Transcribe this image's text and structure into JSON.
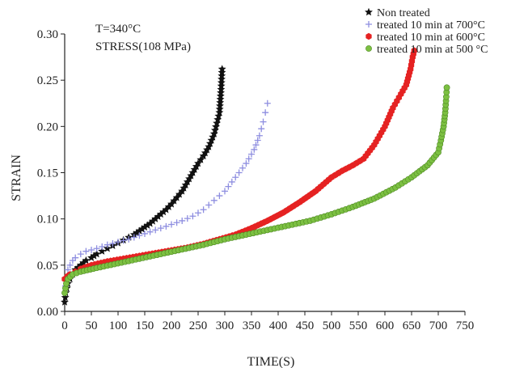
{
  "chart_data": {
    "type": "scatter",
    "annotations": [
      "T=340°C",
      "STRESS(108 MPa)"
    ],
    "xlabel": "TIME(S)",
    "ylabel": "STRAIN",
    "xlim": [
      0,
      750
    ],
    "ylim": [
      0,
      0.3
    ],
    "xticks": [
      "0",
      "50",
      "100",
      "150",
      "200",
      "250",
      "300",
      "350",
      "400",
      "450",
      "500",
      "550",
      "600",
      "650",
      "700",
      "750"
    ],
    "yticks": [
      "0.00",
      "0.05",
      "0.10",
      "0.15",
      "0.20",
      "0.25",
      "0.30"
    ],
    "grid": false,
    "legend_position": "top-right",
    "series": [
      {
        "name": "Non treated",
        "color": "#111111",
        "marker": "star",
        "points": [
          [
            0,
            0.01
          ],
          [
            2,
            0.02
          ],
          [
            4,
            0.025
          ],
          [
            6,
            0.03
          ],
          [
            10,
            0.035
          ],
          [
            15,
            0.04
          ],
          [
            20,
            0.045
          ],
          [
            30,
            0.05
          ],
          [
            40,
            0.055
          ],
          [
            50,
            0.058
          ],
          [
            60,
            0.062
          ],
          [
            70,
            0.065
          ],
          [
            80,
            0.068
          ],
          [
            90,
            0.071
          ],
          [
            100,
            0.074
          ],
          [
            110,
            0.077
          ],
          [
            120,
            0.08
          ],
          [
            130,
            0.083
          ],
          [
            140,
            0.087
          ],
          [
            150,
            0.091
          ],
          [
            160,
            0.095
          ],
          [
            170,
            0.1
          ],
          [
            180,
            0.105
          ],
          [
            190,
            0.11
          ],
          [
            200,
            0.116
          ],
          [
            210,
            0.123
          ],
          [
            220,
            0.13
          ],
          [
            230,
            0.14
          ],
          [
            240,
            0.15
          ],
          [
            250,
            0.16
          ],
          [
            260,
            0.168
          ],
          [
            270,
            0.178
          ],
          [
            280,
            0.192
          ],
          [
            290,
            0.215
          ],
          [
            293,
            0.24
          ],
          [
            295,
            0.262
          ]
        ]
      },
      {
        "name": "treated 10 min at 700°C",
        "color": "#8e8ee0",
        "marker": "plus",
        "points": [
          [
            0,
            0.02
          ],
          [
            3,
            0.035
          ],
          [
            6,
            0.045
          ],
          [
            10,
            0.05
          ],
          [
            15,
            0.055
          ],
          [
            20,
            0.058
          ],
          [
            30,
            0.062
          ],
          [
            40,
            0.065
          ],
          [
            60,
            0.068
          ],
          [
            80,
            0.072
          ],
          [
            100,
            0.075
          ],
          [
            120,
            0.078
          ],
          [
            140,
            0.082
          ],
          [
            160,
            0.086
          ],
          [
            180,
            0.09
          ],
          [
            200,
            0.094
          ],
          [
            220,
            0.098
          ],
          [
            240,
            0.103
          ],
          [
            260,
            0.11
          ],
          [
            280,
            0.12
          ],
          [
            300,
            0.13
          ],
          [
            320,
            0.145
          ],
          [
            340,
            0.16
          ],
          [
            355,
            0.175
          ],
          [
            365,
            0.19
          ],
          [
            372,
            0.205
          ],
          [
            376,
            0.215
          ],
          [
            380,
            0.225
          ]
        ]
      },
      {
        "name": "treated 10 min at 600°C",
        "color": "#e52222",
        "marker": "hexagon",
        "points": [
          [
            0,
            0.035
          ],
          [
            5,
            0.038
          ],
          [
            10,
            0.04
          ],
          [
            20,
            0.043
          ],
          [
            30,
            0.046
          ],
          [
            50,
            0.05
          ],
          [
            80,
            0.054
          ],
          [
            110,
            0.057
          ],
          [
            140,
            0.06
          ],
          [
            170,
            0.063
          ],
          [
            200,
            0.066
          ],
          [
            230,
            0.069
          ],
          [
            260,
            0.073
          ],
          [
            290,
            0.078
          ],
          [
            320,
            0.083
          ],
          [
            350,
            0.09
          ],
          [
            380,
            0.098
          ],
          [
            410,
            0.107
          ],
          [
            440,
            0.118
          ],
          [
            470,
            0.13
          ],
          [
            500,
            0.145
          ],
          [
            520,
            0.152
          ],
          [
            540,
            0.158
          ],
          [
            560,
            0.165
          ],
          [
            580,
            0.18
          ],
          [
            600,
            0.2
          ],
          [
            615,
            0.22
          ],
          [
            630,
            0.235
          ],
          [
            640,
            0.245
          ],
          [
            648,
            0.262
          ],
          [
            652,
            0.275
          ],
          [
            655,
            0.282
          ]
        ]
      },
      {
        "name": "treated 10 min at 500 °C",
        "color": "#7cc042",
        "marker": "circle",
        "points": [
          [
            0,
            0.02
          ],
          [
            3,
            0.03
          ],
          [
            6,
            0.035
          ],
          [
            15,
            0.04
          ],
          [
            30,
            0.043
          ],
          [
            60,
            0.047
          ],
          [
            100,
            0.052
          ],
          [
            140,
            0.057
          ],
          [
            180,
            0.062
          ],
          [
            220,
            0.067
          ],
          [
            260,
            0.072
          ],
          [
            300,
            0.078
          ],
          [
            340,
            0.083
          ],
          [
            380,
            0.088
          ],
          [
            420,
            0.093
          ],
          [
            460,
            0.098
          ],
          [
            500,
            0.105
          ],
          [
            540,
            0.113
          ],
          [
            580,
            0.122
          ],
          [
            620,
            0.134
          ],
          [
            650,
            0.145
          ],
          [
            680,
            0.158
          ],
          [
            700,
            0.172
          ],
          [
            705,
            0.185
          ],
          [
            710,
            0.2
          ],
          [
            713,
            0.215
          ],
          [
            715,
            0.232
          ],
          [
            716,
            0.242
          ]
        ]
      }
    ]
  }
}
